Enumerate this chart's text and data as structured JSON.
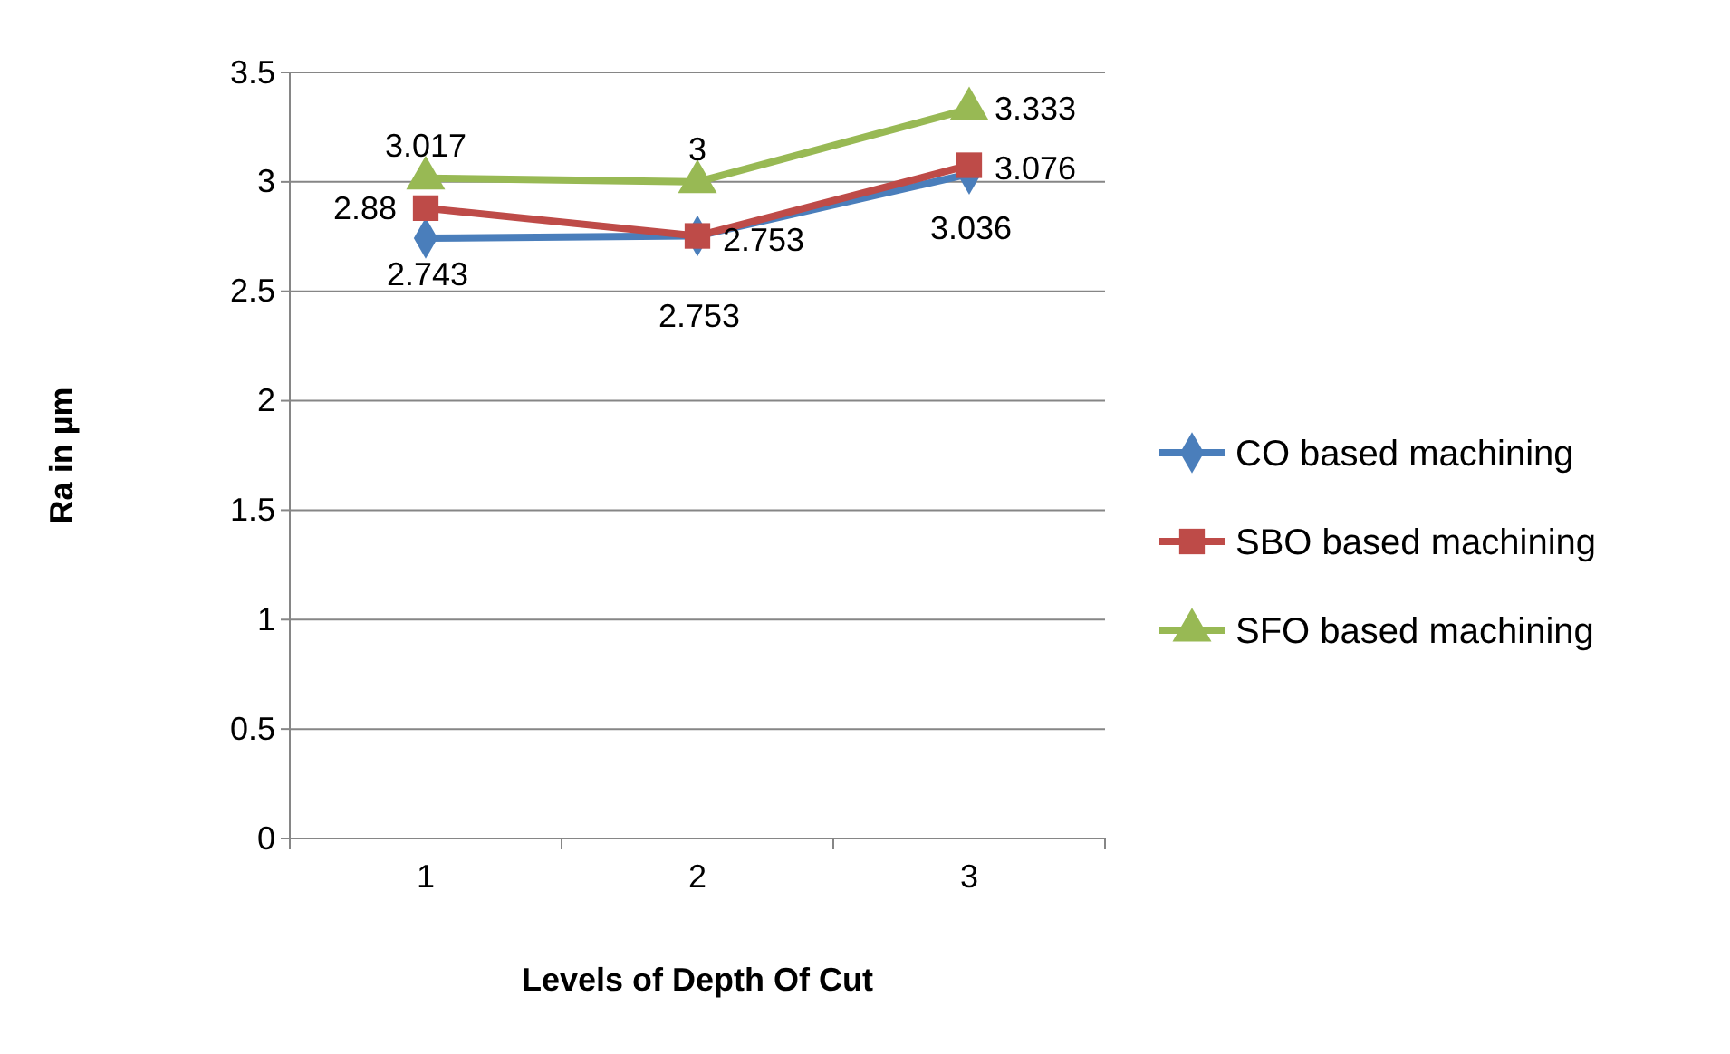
{
  "chart_data": {
    "type": "line",
    "xlabel": "Levels of Depth Of Cut",
    "ylabel": "Ra in µm",
    "categories": [
      "1",
      "2",
      "3"
    ],
    "series": [
      {
        "name": "CO based machining",
        "color": "#4a7ebb",
        "marker": "diamond",
        "values": [
          2.743,
          2.753,
          3.036
        ]
      },
      {
        "name": "SBO based machining",
        "color": "#be4b48",
        "marker": "square",
        "values": [
          2.88,
          2.753,
          3.076
        ]
      },
      {
        "name": "SFO based machining",
        "color": "#98b954",
        "marker": "triangle",
        "values": [
          3.017,
          3,
          3.333
        ]
      }
    ],
    "ylim": [
      0,
      3.5
    ],
    "yticks": [
      0,
      0.5,
      1,
      1.5,
      2,
      2.5,
      3,
      3.5
    ],
    "grid": "y",
    "legend": "right",
    "data_labels": true,
    "line_style": "solid"
  }
}
